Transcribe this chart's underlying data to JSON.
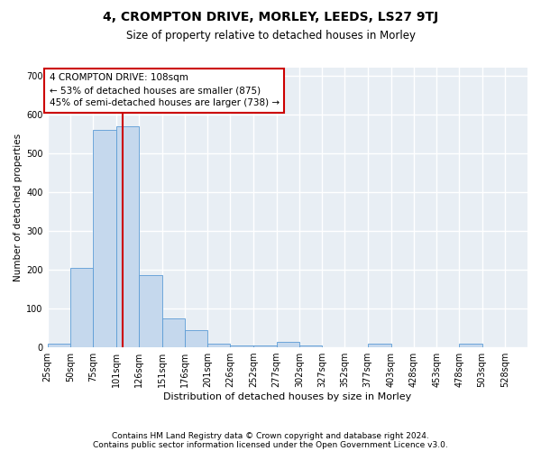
{
  "title": "4, CROMPTON DRIVE, MORLEY, LEEDS, LS27 9TJ",
  "subtitle": "Size of property relative to detached houses in Morley",
  "xlabel": "Distribution of detached houses by size in Morley",
  "ylabel": "Number of detached properties",
  "footer_line1": "Contains HM Land Registry data © Crown copyright and database right 2024.",
  "footer_line2": "Contains public sector information licensed under the Open Government Licence v3.0.",
  "annotation_line1": "4 CROMPTON DRIVE: 108sqm",
  "annotation_line2": "← 53% of detached houses are smaller (875)",
  "annotation_line3": "45% of semi-detached houses are larger (738) →",
  "bar_bins": [
    25,
    50,
    75,
    101,
    126,
    151,
    176,
    201,
    226,
    252,
    277,
    302,
    327,
    352,
    377,
    403,
    428,
    453,
    478,
    503,
    528
  ],
  "bar_values": [
    10,
    205,
    560,
    570,
    185,
    75,
    45,
    10,
    5,
    5,
    15,
    5,
    0,
    0,
    10,
    0,
    0,
    0,
    10,
    0,
    0
  ],
  "bar_color": "#c5d8ed",
  "bar_edge_color": "#5b9bd5",
  "property_size": 108,
  "vline_color": "#cc0000",
  "annotation_box_color": "#cc0000",
  "background_color": "#e8eef4",
  "ylim": [
    0,
    720
  ],
  "yticks": [
    0,
    100,
    200,
    300,
    400,
    500,
    600,
    700
  ],
  "grid_color": "#ffffff",
  "title_fontsize": 10,
  "subtitle_fontsize": 8.5,
  "axis_label_fontsize": 7.5,
  "ylabel_fontsize": 7.5,
  "tick_fontsize": 7,
  "annotation_fontsize": 7.5,
  "footer_fontsize": 6.5
}
